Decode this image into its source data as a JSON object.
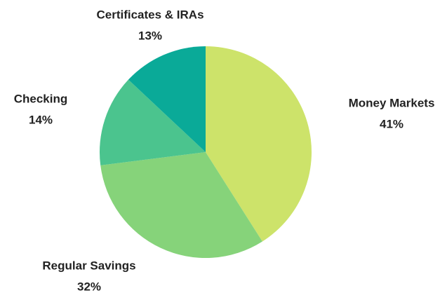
{
  "chart_data": {
    "type": "pie",
    "categories": [
      "Money Markets",
      "Regular Savings",
      "Checking",
      "Certificates & IRAs"
    ],
    "values": [
      41,
      32,
      14,
      13
    ],
    "value_labels": [
      "41%",
      "32%",
      "14%",
      "13%"
    ],
    "colors": [
      "#cde36a",
      "#86d37a",
      "#4bc48e",
      "#0aaa98"
    ]
  }
}
